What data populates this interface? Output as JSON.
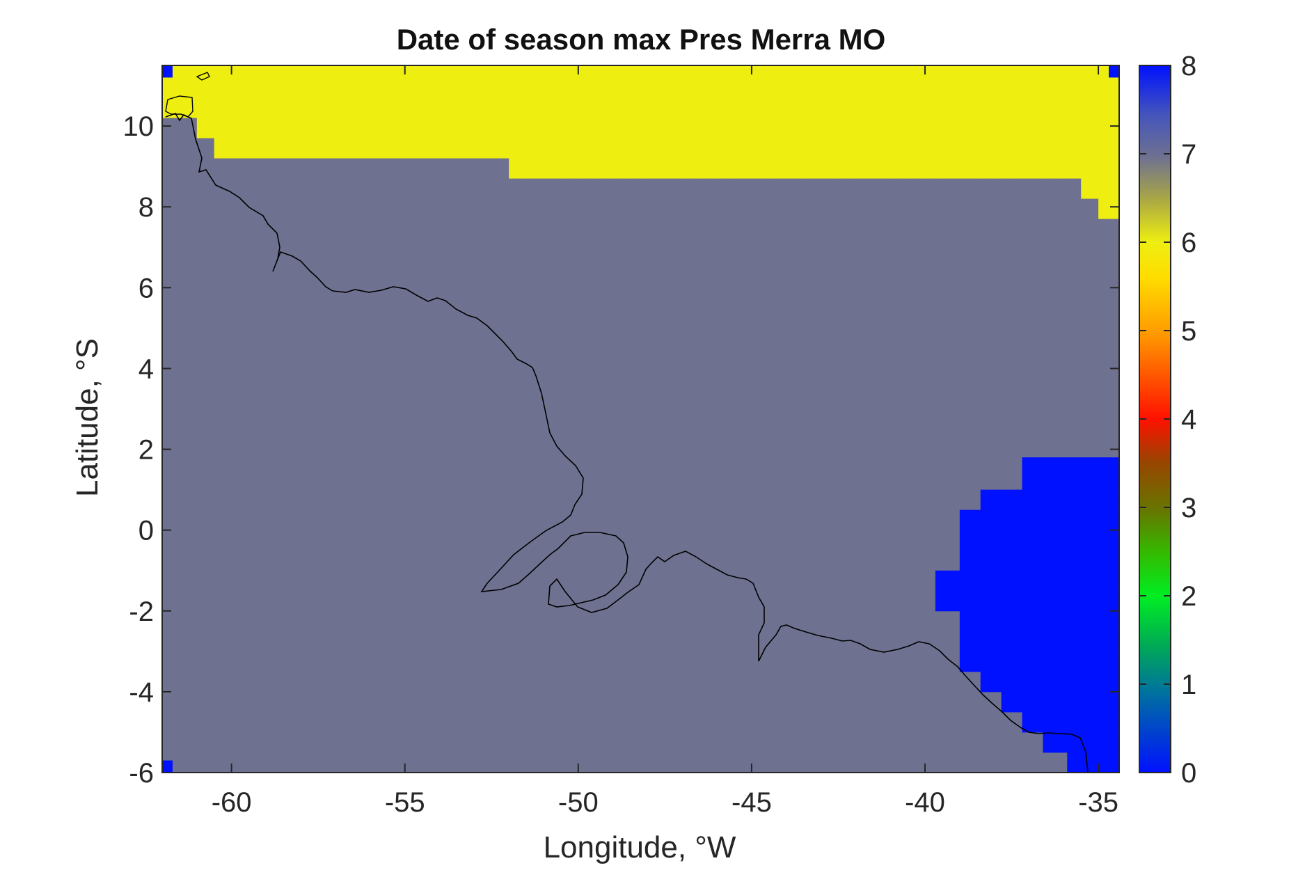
{
  "chart_data": {
    "type": "heatmap",
    "title": "Date of season max Pres Merra MO",
    "xlabel": "Longitude, °W",
    "ylabel": "Latitude, °S",
    "xlim": [
      -62.0,
      -34.4
    ],
    "ylim": [
      -6.0,
      11.5
    ],
    "xticks": [
      -60,
      -55,
      -50,
      -45,
      -40,
      -35
    ],
    "yticks": [
      -6,
      -4,
      -2,
      0,
      2,
      4,
      6,
      8,
      10
    ],
    "colorbar": {
      "range": [
        0,
        8
      ],
      "ticks": [
        0,
        1,
        2,
        3,
        4,
        5,
        6,
        7,
        8
      ],
      "colormap": "jet-like (blue-teal-green-yellow-orange-red-brown-olive-yellow-gray-blue)"
    },
    "background_value": 7,
    "regions": [
      {
        "name": "north-band",
        "value": 6,
        "color": "#eeee11",
        "description": "Yellow band along northern edge (~9-11.5°S latitude label), widest in the west"
      },
      {
        "name": "interior",
        "value": 7,
        "color": "#6f7190"
      },
      {
        "name": "southeast-patch",
        "value": 8,
        "color": "#0011ff",
        "description": "Blue patch in the southeast, lon -39.8 to -34.4, lat -6 to 1.8"
      },
      {
        "name": "corner-cells",
        "value": 8,
        "color": "#0011ff"
      }
    ],
    "grid": false,
    "colors": {
      "value_6": "#eeee11",
      "value_7": "#6f7190",
      "value_8": "#0011ff",
      "coastline": "#000000"
    }
  }
}
